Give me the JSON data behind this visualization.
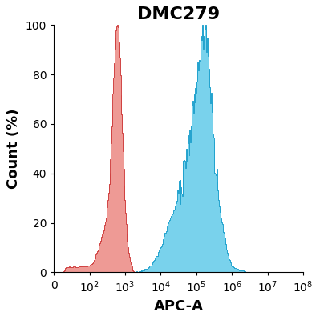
{
  "title": "DMC279",
  "xlabel": "APC-A",
  "ylabel": "Count (%)",
  "ylim": [
    0,
    100
  ],
  "yticks": [
    0,
    20,
    40,
    60,
    80,
    100
  ],
  "red_color": "#E8736C",
  "blue_color": "#5BC8E8",
  "red_edge": "#CC3333",
  "blue_edge": "#1A9FCC",
  "background_color": "#ffffff",
  "title_fontsize": 16,
  "label_fontsize": 13,
  "tick_fontsize": 10
}
